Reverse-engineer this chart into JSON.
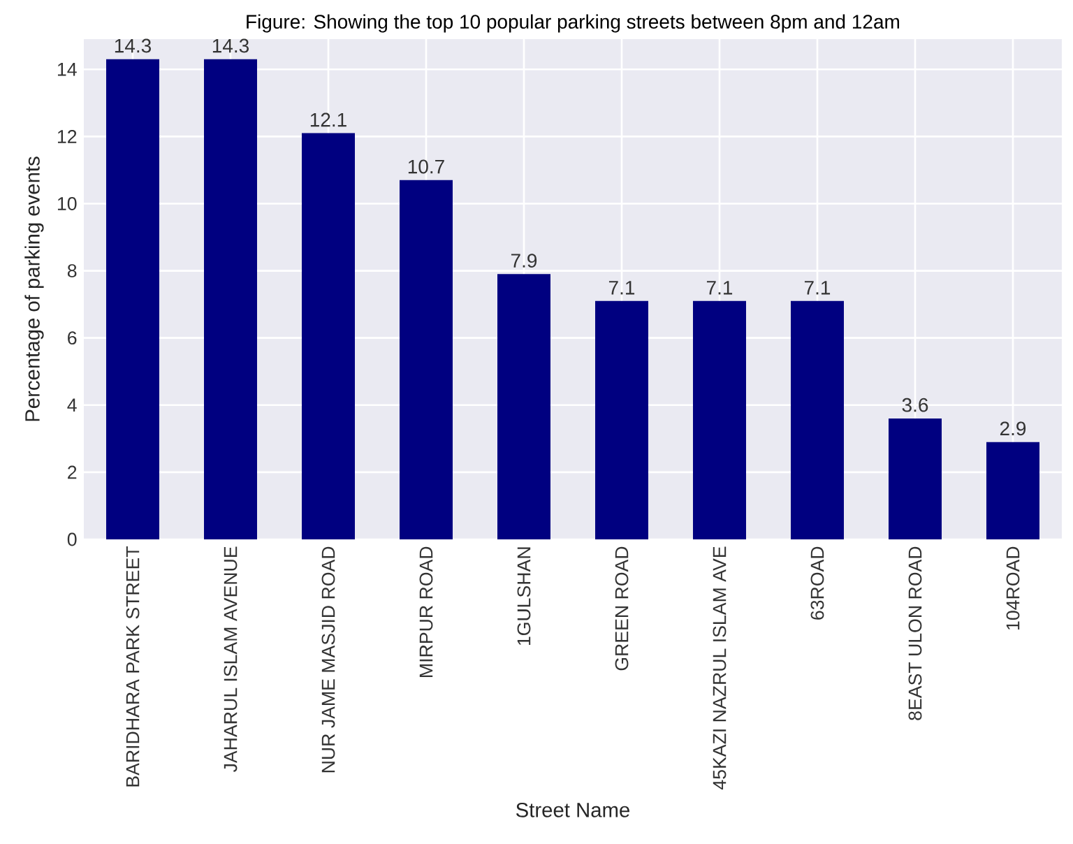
{
  "chart_data": {
    "type": "bar",
    "title": "Figure: Showing the top 10 popular parking streets between 8pm and 12am",
    "xlabel": "Street Name",
    "ylabel": "Percentage of parking events",
    "categories": [
      "BARIDHARA PARK STREET",
      "JAHARUL ISLAM AVENUE",
      "NUR JAME MASJID ROAD",
      "MIRPUR ROAD",
      "1GULSHAN",
      "GREEN ROAD",
      "45KAZI NAZRUL ISLAM AVE",
      "63ROAD",
      "8EAST ULON ROAD",
      "104ROAD"
    ],
    "values": [
      14.3,
      14.3,
      12.1,
      10.7,
      7.9,
      7.1,
      7.1,
      7.1,
      3.6,
      2.9
    ],
    "color": "#000080",
    "ylim": [
      0,
      14.9
    ],
    "yticks": [
      0,
      2,
      4,
      6,
      8,
      10,
      12,
      14
    ],
    "grid": true,
    "data_labels": true
  }
}
